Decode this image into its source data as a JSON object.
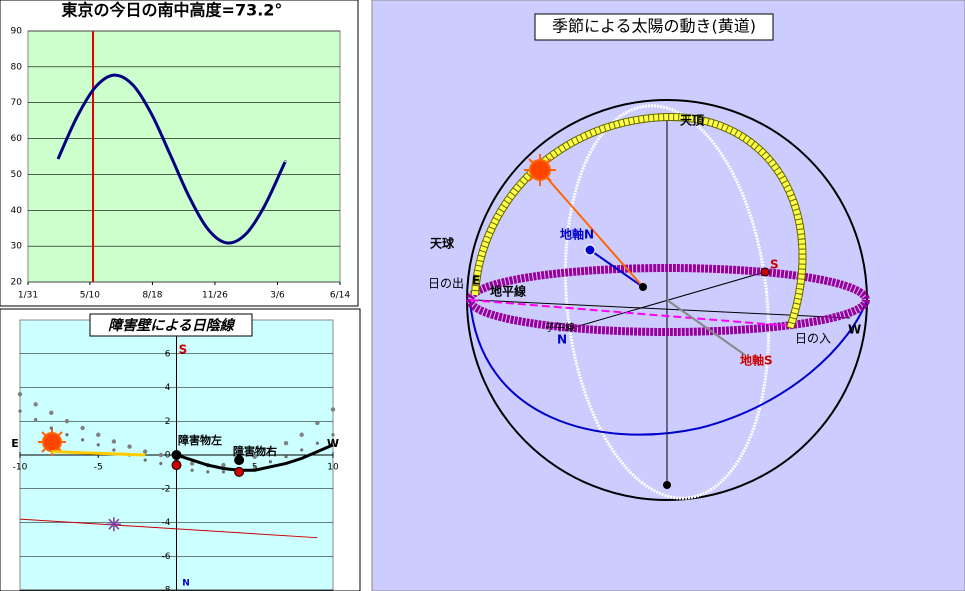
{
  "chart_data": [
    {
      "type": "line",
      "title": "東京の今日の南中高度=73.2°",
      "x": [
        48,
        78,
        108,
        138,
        168,
        198,
        228,
        258,
        288,
        318,
        348,
        378,
        408,
        411
      ],
      "series": [
        {
          "color": "#000080",
          "values": [
            54.3,
            65.9,
            74.4,
            77.7,
            74.9,
            66.7,
            55.3,
            43.7,
            34.7,
            30.9,
            33.3,
            41.1,
            52.3,
            53.5
          ]
        }
      ],
      "xlim": [
        0,
        499
      ],
      "xticks": [
        {
          "value": 0,
          "label": "1/31"
        },
        {
          "value": 99,
          "label": "5/10"
        },
        {
          "value": 199,
          "label": "8/18"
        },
        {
          "value": 299,
          "label": "11/26"
        },
        {
          "value": 399,
          "label": "3/6"
        },
        {
          "value": 499,
          "label": "6/14"
        }
      ],
      "ylim": [
        20,
        90
      ],
      "yticks": [
        20,
        30,
        40,
        50,
        60,
        70,
        80,
        90
      ],
      "grid": true,
      "plot_background": "#ccffcc",
      "marker_x": 104,
      "marker_color": "#e00000"
    },
    {
      "type": "scatter",
      "title": "障害壁による日陰線",
      "xlim": [
        -10,
        10
      ],
      "xticks": [
        -10,
        -5,
        0,
        5,
        10
      ],
      "ylim": [
        -8,
        8
      ],
      "yticks": [
        6,
        4,
        2,
        0,
        -2,
        -4,
        -6,
        -8
      ],
      "grid": true,
      "plot_background": "#ccffff",
      "axes_cross_at_zero": true,
      "labels": {
        "south": "S",
        "north": "N",
        "east": "E",
        "west": "W",
        "obstacle_left": "障害物左",
        "obstacle_right": "障害物右"
      },
      "series": [
        {
          "style": "large-dots",
          "color": "#808080",
          "x": [
            -10,
            -9,
            -8,
            -7,
            -6,
            -5,
            -4,
            -3,
            -2,
            -1,
            0,
            1,
            2,
            3,
            4,
            5,
            6,
            7,
            8,
            9,
            10
          ],
          "values": [
            3.6,
            3.0,
            2.5,
            2.0,
            1.6,
            1.2,
            0.8,
            0.5,
            0.2,
            0,
            -0.3,
            -0.5,
            -0.6,
            -0.6,
            -0.4,
            -0.1,
            0.3,
            0.7,
            1.2,
            1.9,
            2.7
          ]
        },
        {
          "style": "small-dots",
          "color": "#707070",
          "x": [
            -10,
            -9,
            -8,
            -7,
            -6,
            -5,
            -4,
            -3,
            -2,
            -1,
            0,
            1,
            2,
            3,
            4,
            5,
            6,
            7,
            8,
            9,
            10
          ],
          "values": [
            2.6,
            2.1,
            1.6,
            1.2,
            0.9,
            0.6,
            0.3,
            0,
            -0.3,
            -0.5,
            -0.7,
            -0.9,
            -1.0,
            -1.0,
            -0.9,
            -0.7,
            -0.4,
            -0.1,
            0.3,
            0.7,
            1.2
          ]
        },
        {
          "style": "thick-line",
          "color": "#000000",
          "x": [
            0,
            1,
            2,
            3,
            4,
            5,
            6,
            7,
            8,
            9,
            10
          ],
          "values": [
            0,
            -0.3,
            -0.6,
            -0.8,
            -0.9,
            -0.9,
            -0.7,
            -0.5,
            -0.2,
            0.2,
            0.6
          ]
        },
        {
          "style": "thick-line",
          "color": "#ffcc00",
          "x": [
            -8,
            -2
          ],
          "values": [
            0.2,
            0
          ]
        },
        {
          "style": "thin-line",
          "color": "#cc0000",
          "x": [
            -10,
            9
          ],
          "values": [
            -3.8,
            -4.9
          ]
        },
        {
          "style": "point",
          "color": "#cc0000",
          "x": [
            0,
            4
          ],
          "values": [
            -0.6,
            -1.0
          ]
        },
        {
          "style": "point",
          "color": "#000000",
          "x": [
            0,
            4
          ],
          "values": [
            0,
            -0.3
          ]
        },
        {
          "style": "star",
          "color": "#8040a0",
          "x": [
            -4
          ],
          "values": [
            -4.1
          ]
        }
      ]
    }
  ],
  "diagram": {
    "title": "季節による太陽の動き(黄道)",
    "labels": {
      "zenith": "天頂",
      "sphere": "天球",
      "axis_n": "地軸N",
      "sunrise": "日の出",
      "east": "E",
      "horizon": "地平線",
      "south": "S",
      "west": "W",
      "sunset": "日の入",
      "north": "N",
      "axis_s": "地軸S",
      "meridian": "子午線"
    }
  }
}
